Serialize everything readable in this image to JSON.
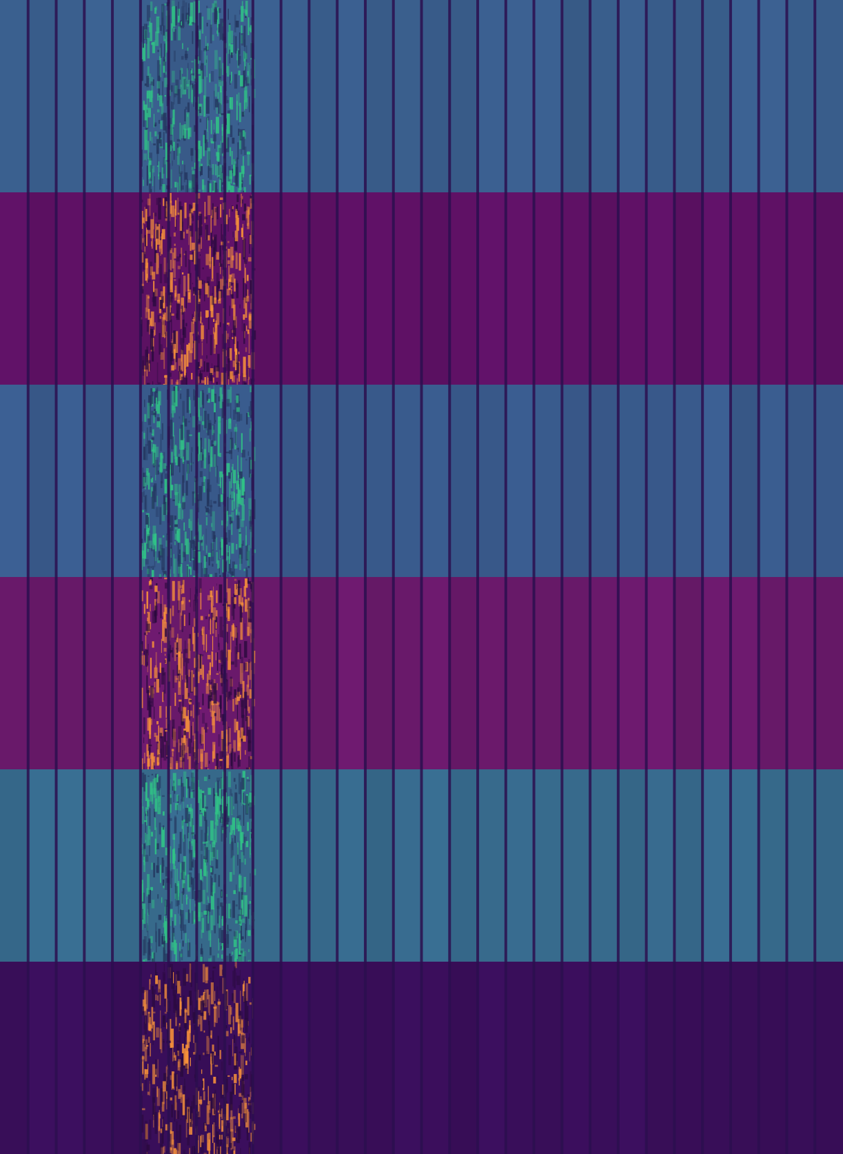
{
  "chart_data": {
    "type": "heatmap",
    "title": "",
    "xlabel": "",
    "ylabel": "",
    "axes_visible": false,
    "grid": false,
    "legend": "none",
    "colormap": [
      "#0d0a2e",
      "#2a0f4d",
      "#4b1166",
      "#6e1b74",
      "#3b528b",
      "#2c7a8c",
      "#21a585",
      "#3ec272",
      "#f58b2c",
      "#f9a542"
    ],
    "column_count": 30,
    "band_count": 6,
    "bands": [
      {
        "index": 0,
        "colormap": "viridis",
        "base_color": "#3a5e8c"
      },
      {
        "index": 1,
        "colormap": "magma",
        "base_color": "#5e1264"
      },
      {
        "index": 2,
        "colormap": "viridis",
        "base_color": "#3a5b8d"
      },
      {
        "index": 3,
        "colormap": "magma",
        "base_color": "#6b1a6c"
      },
      {
        "index": 4,
        "colormap": "viridis",
        "base_color": "#376a8c"
      },
      {
        "index": 5,
        "colormap": "magma",
        "base_color": "#3a0e5a"
      }
    ],
    "separator_color": "#2b0f4f",
    "highlight_columns": [
      5,
      6,
      7,
      8
    ],
    "high_value_color": {
      "viridis": "#30c486",
      "magma": "#f7913a"
    }
  }
}
